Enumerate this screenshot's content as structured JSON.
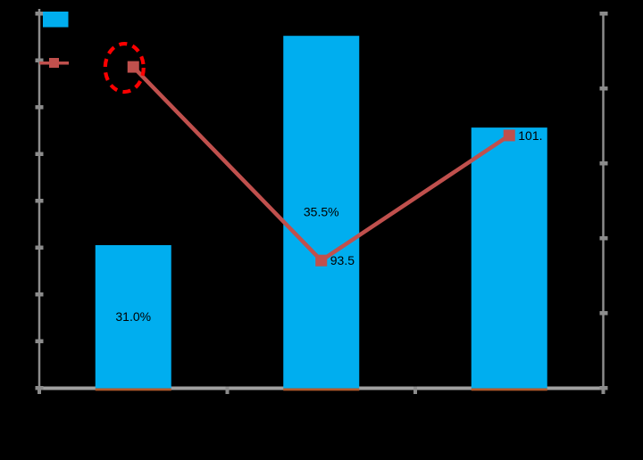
{
  "chart_data": {
    "type": "combo-bar-line",
    "title": "",
    "categories": [
      "",
      "",
      ""
    ],
    "legend": {
      "position": "top-left",
      "items": [
        {
          "name": "bar-series-swatch",
          "swatch": "rectangle",
          "color": "#00AEEF",
          "label": ""
        },
        {
          "name": "line-series-swatch",
          "swatch": "line-with-square-marker",
          "color": "#C0504D",
          "label": ""
        }
      ]
    },
    "series": [
      {
        "name": "bar-series",
        "type": "bar",
        "color": "#00AEEF",
        "underline_color": "#B35A2B",
        "data_labels": [
          "31.0%",
          "35.5%",
          ""
        ],
        "height_fractions": [
          0.381,
          0.94,
          0.695
        ],
        "values_estimated_pct": [
          31.0,
          35.5,
          null
        ]
      },
      {
        "name": "line-series",
        "type": "line",
        "color": "#C0504D",
        "marker": "square",
        "data_labels": [
          "",
          "93.5",
          "101."
        ],
        "point_fractions": [
          0.857,
          0.34,
          0.674
        ],
        "values_estimated": [
          106.4,
          93.5,
          101.8
        ]
      }
    ],
    "annotation": {
      "name": "dashed-circle-annotation",
      "shape": "dashed-ellipse",
      "color": "#FE0000",
      "target": "first-line-point"
    },
    "axes": {
      "left_axis": {
        "tick_count": 9,
        "labels_visible": false,
        "color": "#8C8C8C"
      },
      "right_axis": {
        "tick_count": 6,
        "labels_visible": false,
        "color": "#8C8C8C"
      },
      "bottom_axis": {
        "boundary_tick_count": 4,
        "labels_visible": false,
        "color": "#A0A0A0"
      },
      "gridlines": false
    }
  },
  "colors": {
    "background": "#000000",
    "bar_fill": "#00AEEF",
    "bar_bottom_strip": "#B35A2B",
    "line_stroke": "#C0504D",
    "annotation_stroke": "#FE0000",
    "axis_gray": "#8C8C8C",
    "bottom_axis_gray": "#A0A0A0",
    "label_text": "#000000"
  }
}
